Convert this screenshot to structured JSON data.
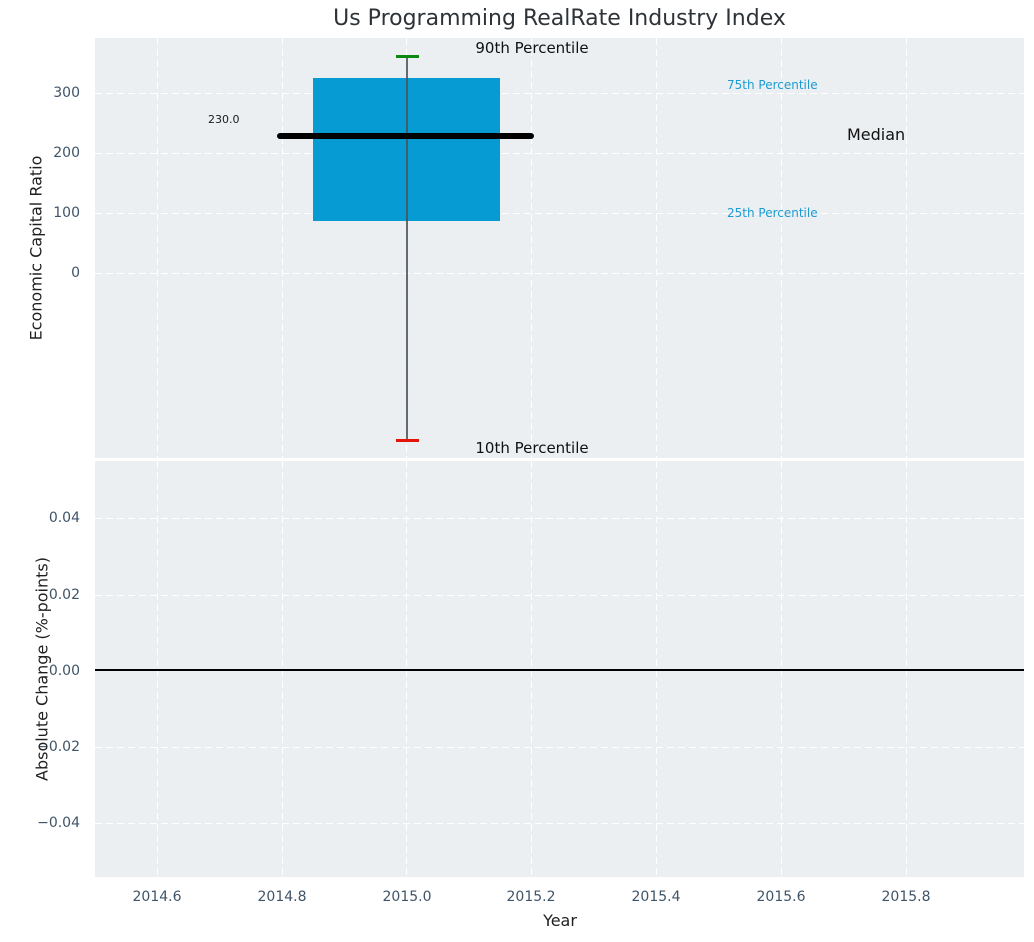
{
  "title": "Us Programming RealRate Industry Index",
  "top_plot": {
    "ylabel": "Economic Capital Ratio",
    "yticks": [
      "300",
      "200",
      "100",
      "0"
    ],
    "median_value_label": "230.0",
    "annotations": {
      "p90": "90th Percentile",
      "p10": "10th Percentile",
      "p75": "75th Percentile",
      "p25": "25th Percentile",
      "median": "Median"
    }
  },
  "bottom_plot": {
    "ylabel": "Absolute Change (%-points)",
    "yticks": [
      "0.04",
      "0.02",
      "0.00",
      "−0.02",
      "−0.04"
    ]
  },
  "xaxis": {
    "label": "Year",
    "ticks": [
      "2014.6",
      "2014.8",
      "2015.0",
      "2015.2",
      "2015.4",
      "2015.6",
      "2015.8"
    ]
  },
  "colors": {
    "plot_background": "#eceff1",
    "gridline": "#ffffff",
    "box_fill": "#069cd3",
    "median_line": "#000000",
    "whisker": "#4b5258",
    "p90_marker": "#0c870f",
    "p10_marker": "#e41408",
    "percentile_label_text": "#1b9cd3",
    "tick_label": "#3f5468",
    "zero_line": "#000000"
  },
  "chart_data": {
    "type": "boxplot",
    "title": "Us Programming RealRate Industry Index",
    "xlabel": "Year",
    "xlim": [
      2014.5,
      2016.0
    ],
    "xticks": [
      2014.6,
      2014.8,
      2015.0,
      2015.2,
      2015.4,
      2015.6,
      2015.8
    ],
    "grid": "white-dashed on light gray, both axes",
    "subplots": [
      {
        "position": "top",
        "ylabel": "Economic Capital Ratio",
        "ylim": [
          -310,
          390
        ],
        "yticks": [
          0,
          100,
          200,
          300
        ],
        "series": [
          {
            "name": "Us Programming RealRate Industry Index",
            "x": 2015.0,
            "percentile_10": -280,
            "percentile_25": 87,
            "median": 230.0,
            "percentile_75": 325,
            "percentile_90": 360,
            "box_x_span": [
              2014.85,
              2015.15
            ],
            "median_line_x_span": [
              2014.79,
              2015.21
            ]
          }
        ]
      },
      {
        "position": "bottom",
        "ylabel": "Absolute Change (%-points)",
        "ylim": [
          -0.055,
          0.055
        ],
        "yticks": [
          -0.04,
          -0.02,
          0.0,
          0.02,
          0.04
        ],
        "zero_line_y": 0.0,
        "series": []
      }
    ],
    "legend": false
  }
}
